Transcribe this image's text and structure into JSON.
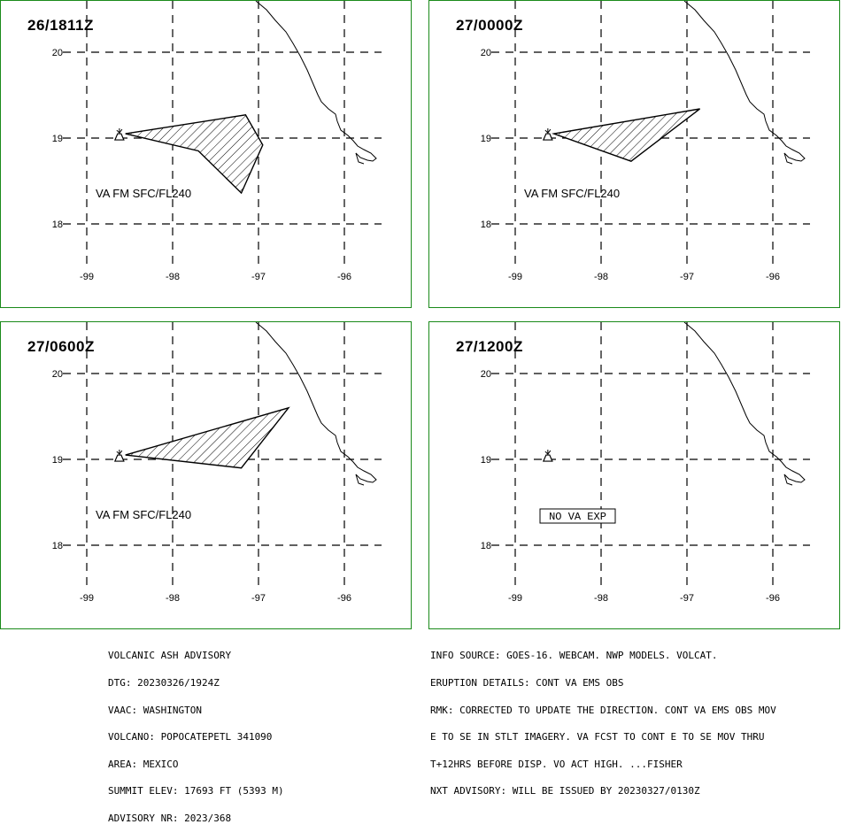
{
  "panels": [
    {
      "title": "26/1811Z",
      "label": "VA FM SFC/FL240",
      "ash": [
        [
          -98.55,
          19.05
        ],
        [
          -97.15,
          19.27
        ],
        [
          -96.95,
          18.92
        ],
        [
          -97.2,
          18.36
        ],
        [
          -97.7,
          18.85
        ],
        [
          -98.55,
          19.05
        ]
      ],
      "no_va": null
    },
    {
      "title": "27/0000Z",
      "label": "VA FM SFC/FL240",
      "ash": [
        [
          -98.55,
          19.05
        ],
        [
          -96.85,
          19.34
        ],
        [
          -97.65,
          18.73
        ],
        [
          -98.55,
          19.05
        ]
      ],
      "no_va": null
    },
    {
      "title": "27/0600Z",
      "label": "VA FM SFC/FL240",
      "ash": [
        [
          -98.55,
          19.05
        ],
        [
          -96.65,
          19.6
        ],
        [
          -97.2,
          18.9
        ],
        [
          -98.55,
          19.05
        ]
      ],
      "no_va": null
    },
    {
      "title": "27/1200Z",
      "label": "",
      "ash": null,
      "no_va": "NO VA EXP"
    }
  ],
  "axes": {
    "lon_ticks": [
      -99,
      -98,
      -97,
      -96
    ],
    "lon_labels": [
      "-99",
      "-98",
      "-97",
      "-96"
    ],
    "lat_ticks": [
      20,
      19,
      18
    ],
    "lat_labels": [
      "20",
      "19",
      "18"
    ]
  },
  "volcano": {
    "lon": -98.62,
    "lat": 19.02
  },
  "colors": {
    "frame": "#1a8a1a",
    "ink": "#000000",
    "background": "#ffffff"
  },
  "advisory_left": [
    "VOLCANIC ASH ADVISORY",
    "DTG: 20230326/1924Z",
    "VAAC: WASHINGTON",
    "VOLCANO: POPOCATEPETL 341090",
    "AREA: MEXICO",
    "SUMMIT ELEV: 17693 FT (5393 M)",
    "ADVISORY NR: 2023/368"
  ],
  "advisory_right": [
    "INFO SOURCE: GOES-16. WEBCAM. NWP MODELS. VOLCAT.",
    "ERUPTION DETAILS: CONT VA EMS OBS",
    "RMK: CORRECTED TO UPDATE THE DIRECTION. CONT VA EMS OBS MOV",
    "E TO SE IN STLT IMAGERY. VA FCST TO CONT E TO SE MOV THRU",
    "T+12HRS BEFORE DISP. VO ACT HIGH. ...FISHER",
    "NXT ADVISORY: WILL BE ISSUED BY 20230327/0130Z"
  ]
}
